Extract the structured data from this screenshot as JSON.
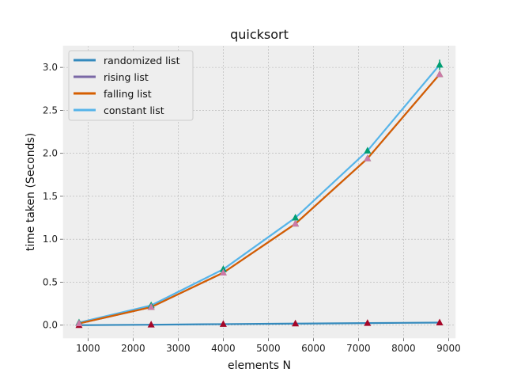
{
  "chart_data": {
    "type": "line",
    "title": "quicksort",
    "xlabel": "elements N",
    "ylabel": "time taken (Seconds)",
    "xlim": [
      450,
      9150
    ],
    "ylim": [
      -0.15,
      3.25
    ],
    "xticks": [
      1000,
      2000,
      3000,
      4000,
      5000,
      6000,
      7000,
      8000,
      9000
    ],
    "yticks": [
      0.0,
      0.5,
      1.0,
      1.5,
      2.0,
      2.5,
      3.0
    ],
    "grid": true,
    "legend_position": "top-left",
    "x": [
      800,
      2400,
      4000,
      5600,
      7200,
      8800
    ],
    "series": [
      {
        "name": "randomized list",
        "color": "#348ABD",
        "values": [
          0.0,
          0.005,
          0.012,
          0.018,
          0.024,
          0.03
        ],
        "error": [
          0.0,
          0.0,
          0.0,
          0.0,
          0.0,
          0.0
        ],
        "marker_color": "#A60628"
      },
      {
        "name": "rising list",
        "color": "#7A68A6",
        "values": [
          0.02,
          0.21,
          0.61,
          1.18,
          1.94,
          2.92
        ],
        "error": [
          0.0,
          0.0,
          0.01,
          0.01,
          0.01,
          0.02
        ],
        "marker_color": "#467821"
      },
      {
        "name": "falling list",
        "color": "#D55E00",
        "values": [
          0.02,
          0.21,
          0.61,
          1.18,
          1.94,
          2.92
        ],
        "error": [
          0.0,
          0.0,
          0.01,
          0.01,
          0.01,
          0.02
        ],
        "marker_color": "#CC79A7"
      },
      {
        "name": "constant list",
        "color": "#56B4E9",
        "values": [
          0.03,
          0.23,
          0.65,
          1.25,
          2.03,
          3.03
        ],
        "error": [
          0.0,
          0.01,
          0.01,
          0.02,
          0.02,
          0.06
        ],
        "marker_color": "#009E73"
      }
    ]
  }
}
